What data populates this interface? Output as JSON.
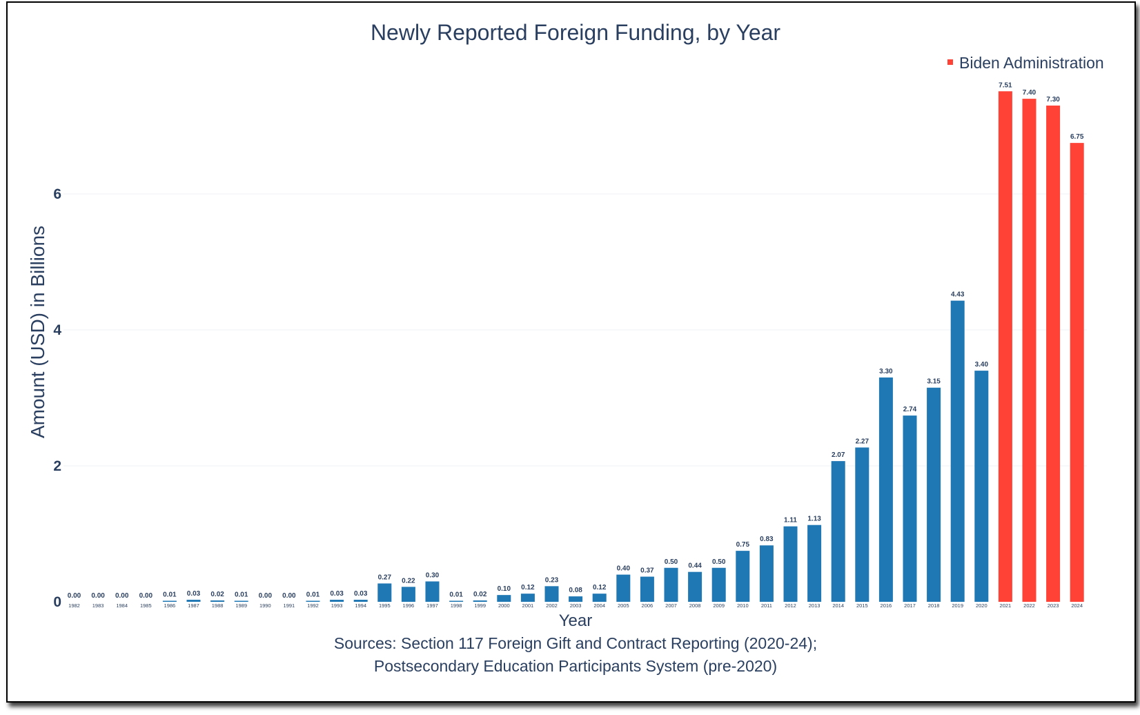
{
  "chart_data": {
    "type": "bar",
    "title": "Newly Reported Foreign Funding, by Year",
    "xlabel": "Year",
    "ylabel": "Amount (USD) in Billions",
    "ylim": [
      0,
      7.8
    ],
    "yticks": [
      0,
      2,
      4,
      6
    ],
    "ytick_labels": [
      "0",
      "2",
      "4",
      "6"
    ],
    "categories": [
      "1982",
      "1983",
      "1984",
      "1985",
      "1986",
      "1987",
      "1988",
      "1989",
      "1990",
      "1991",
      "1992",
      "1993",
      "1994",
      "1995",
      "1996",
      "1997",
      "1998",
      "1999",
      "2000",
      "2001",
      "2002",
      "2003",
      "2004",
      "2005",
      "2006",
      "2007",
      "2008",
      "2009",
      "2010",
      "2011",
      "2012",
      "2013",
      "2014",
      "2015",
      "2016",
      "2017",
      "2018",
      "2019",
      "2020",
      "2021",
      "2022",
      "2023",
      "2024"
    ],
    "values": [
      0.0,
      0.0,
      0.0,
      0.0,
      0.01,
      0.03,
      0.02,
      0.01,
      0.0,
      0.0,
      0.01,
      0.03,
      0.03,
      0.27,
      0.22,
      0.3,
      0.01,
      0.02,
      0.1,
      0.12,
      0.23,
      0.08,
      0.12,
      0.4,
      0.37,
      0.5,
      0.44,
      0.5,
      0.75,
      0.83,
      1.11,
      1.13,
      2.07,
      2.27,
      3.3,
      2.74,
      3.15,
      4.43,
      3.4,
      7.51,
      7.4,
      7.3,
      6.75
    ],
    "value_labels": [
      "0.00",
      "0.00",
      "0.00",
      "0.00",
      "0.01",
      "0.03",
      "0.02",
      "0.01",
      "0.00",
      "0.00",
      "0.01",
      "0.03",
      "0.03",
      "0.27",
      "0.22",
      "0.30",
      "0.01",
      "0.02",
      "0.10",
      "0.12",
      "0.23",
      "0.08",
      "0.12",
      "0.40",
      "0.37",
      "0.50",
      "0.44",
      "0.50",
      "0.75",
      "0.83",
      "1.11",
      "1.13",
      "2.07",
      "2.27",
      "3.30",
      "2.74",
      "3.15",
      "4.43",
      "3.40",
      "7.51",
      "7.40",
      "7.30",
      "6.75"
    ],
    "highlight_start_index": 39,
    "legend": {
      "entries": [
        "Biden Administration"
      ],
      "position": "top-right"
    },
    "grid": true,
    "sources_line1": "Sources: Section 117 Foreign Gift and Contract Reporting (2020-24);",
    "sources_line2": "Postsecondary Education Participants System (pre-2020)",
    "colors": {
      "default_bar": "#1f77b4",
      "highlight_bar": "#ff4136",
      "text": "#2a3f5f",
      "grid": "#eef0f4"
    }
  }
}
